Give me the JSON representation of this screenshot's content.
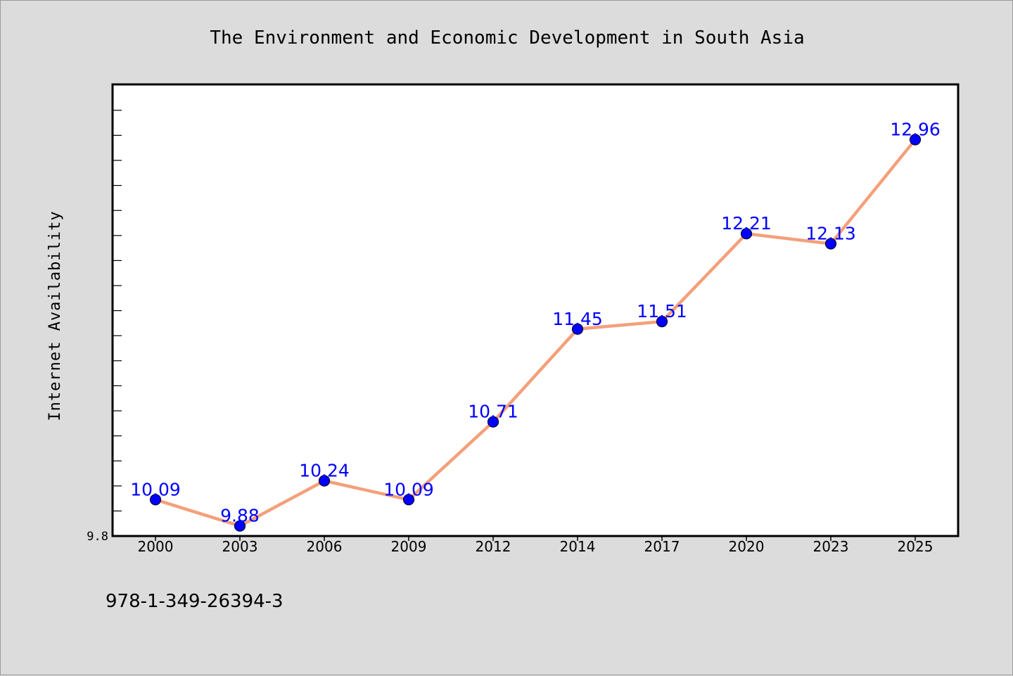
{
  "chart_data": {
    "type": "line",
    "title": "The Environment and Economic Development in South Asia",
    "xlabel": "",
    "ylabel": "Internet Availability",
    "categories": [
      "2000",
      "2003",
      "2006",
      "2009",
      "2012",
      "2014",
      "2017",
      "2020",
      "2023",
      "2025"
    ],
    "series": [
      {
        "values": [
          10.09,
          9.88,
          10.24,
          10.09,
          10.71,
          11.45,
          11.51,
          12.21,
          12.13,
          12.96
        ],
        "data_labels": [
          "10.09",
          "9.88",
          "10.24",
          "10.09",
          "10.71",
          "11.45",
          "11.51",
          "12.21",
          "12.13",
          "12.96"
        ],
        "line_color": "#f4a07a",
        "marker_color": "#0000ff"
      }
    ],
    "ylim": [
      9.8,
      13.4
    ],
    "y_tick_label": "9.8",
    "grid": false,
    "legend": "none"
  },
  "footer": {
    "isbn": "978-1-349-26394-3"
  },
  "colors": {
    "background": "#dcdcdc",
    "plot_background": "#ffffff",
    "line": "#f4a07a",
    "marker": "#0000ff",
    "data_label": "#0000ff"
  }
}
